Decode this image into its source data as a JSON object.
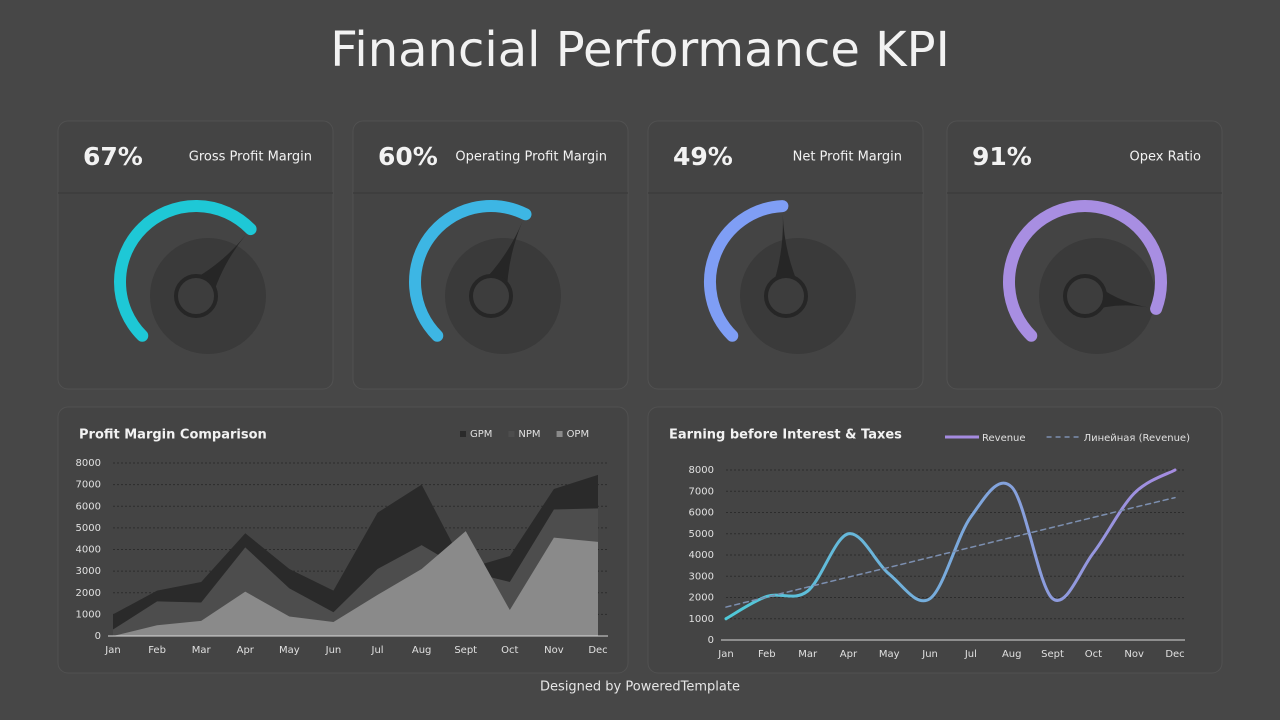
{
  "title": "Financial Performance KPI",
  "footer": "Designed by PoweredTemplate",
  "chart_data": [
    {
      "type": "gauge",
      "title": "Gross Profit Margin",
      "values": [
        67
      ],
      "value_labels": [
        "67%"
      ],
      "color": "#1ec8d6",
      "ylim": [
        0,
        100
      ]
    },
    {
      "type": "gauge",
      "title": "Operating Profit Margin",
      "values": [
        60
      ],
      "value_labels": [
        "60%"
      ],
      "color": "#3db6e4",
      "ylim": [
        0,
        100
      ]
    },
    {
      "type": "gauge",
      "title": "Net Profit Margin",
      "values": [
        49
      ],
      "value_labels": [
        "49%"
      ],
      "color": "#7f9ef5",
      "ylim": [
        0,
        100
      ]
    },
    {
      "type": "gauge",
      "title": "Opex Ratio",
      "values": [
        91
      ],
      "value_labels": [
        "91%"
      ],
      "color": "#a88ee2",
      "ylim": [
        0,
        100
      ]
    },
    {
      "type": "area",
      "title": "Profit Margin Comparison",
      "categories": [
        "Jan",
        "Feb",
        "Mar",
        "Apr",
        "May",
        "Jun",
        "Jul",
        "Aug",
        "Sept",
        "Oct",
        "Nov",
        "Dec"
      ],
      "series": [
        {
          "name": "GPM",
          "color": "#2a2a2a",
          "values": [
            1000,
            2100,
            2500,
            4750,
            3100,
            2100,
            5700,
            7000,
            3100,
            3700,
            6800,
            7450
          ]
        },
        {
          "name": "NPM",
          "color": "#4d4d4d",
          "values": [
            300,
            1600,
            1550,
            4100,
            2200,
            1100,
            3100,
            4200,
            3000,
            2500,
            5850,
            5900
          ]
        },
        {
          "name": "OPM",
          "color": "#8a8a8a",
          "values": [
            0,
            500,
            700,
            2050,
            900,
            650,
            1900,
            3100,
            4850,
            1200,
            4550,
            4350
          ]
        }
      ],
      "ylim": [
        0,
        8000
      ],
      "yticks": [
        0,
        1000,
        2000,
        3000,
        4000,
        5000,
        6000,
        7000,
        8000
      ],
      "grid": true
    },
    {
      "type": "line",
      "title": "Earning before Interest & Taxes",
      "categories": [
        "Jan",
        "Feb",
        "Mar",
        "Apr",
        "May",
        "Jun",
        "Jul",
        "Aug",
        "Sept",
        "Oct",
        "Nov",
        "Dec"
      ],
      "series": [
        {
          "name": "Revenue",
          "colors": [
            "#4fc9d8",
            "#a58be0"
          ],
          "values": [
            1000,
            2050,
            2300,
            5000,
            3100,
            1950,
            5800,
            7200,
            1950,
            4100,
            6900,
            8000
          ]
        },
        {
          "name": "Линейная (Revenue)",
          "color": "#7c8fb0",
          "dashed": true,
          "values": [
            1550,
            2020,
            2490,
            2960,
            3420,
            3890,
            4360,
            4830,
            5300,
            5770,
            6240,
            6700
          ]
        }
      ],
      "ylim": [
        0,
        8000
      ],
      "yticks": [
        0,
        1000,
        2000,
        3000,
        4000,
        5000,
        6000,
        7000,
        8000
      ],
      "grid": true
    }
  ]
}
